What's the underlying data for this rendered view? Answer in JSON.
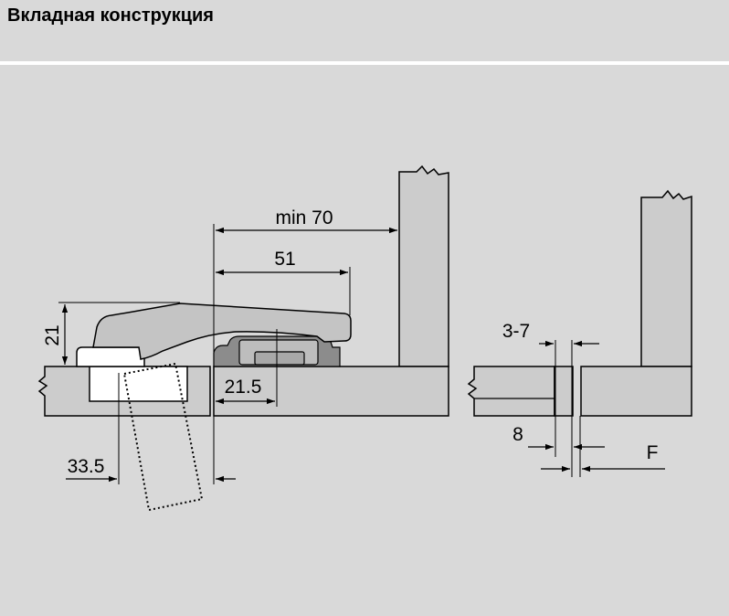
{
  "header": {
    "title": "Вкладная конструкция"
  },
  "dimensions": {
    "min_overall": "min 70",
    "arm_length": "51",
    "height": "21",
    "plate_offset": "21.5",
    "cup_distance": "33.5",
    "gap": "3-7",
    "thickness": "8",
    "f_label": "F"
  },
  "colors": {
    "header_bg": "#d9d9d9",
    "panel_bg": "#d9d9d9",
    "board": "#cccccc",
    "hinge_arm": "#c4c4c4",
    "mount_plate": "#8c8c8c"
  }
}
